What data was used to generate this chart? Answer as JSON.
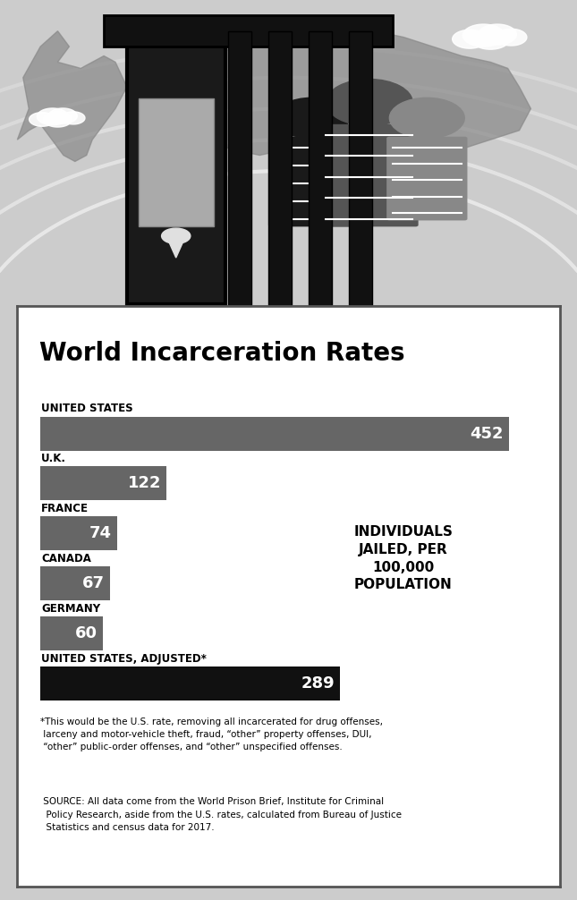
{
  "title": "World Incarceration Rates",
  "categories": [
    "UNITED STATES",
    "U.K.",
    "FRANCE",
    "CANADA",
    "GERMANY",
    "UNITED STATES, ADJUSTED*"
  ],
  "values": [
    452,
    122,
    74,
    67,
    60,
    289
  ],
  "bar_colors": [
    "#666666",
    "#666666",
    "#666666",
    "#666666",
    "#666666",
    "#111111"
  ],
  "value_color": "#ffffff",
  "annotation": "INDIVIDUALS\nJAILED, PER\n100,000\nPOPULATION",
  "footnote1": "*This would be the U.S. rate, removing all incarcerated for drug offenses,\n larceny and motor-vehicle theft, fraud, “other” property offenses, DUI,\n “other” public-order offenses, and “other” unspecified offenses.",
  "footnote2": " SOURCE: All data come from the World Prison Brief, Institute for Criminal\n  Policy Research, aside from the U.S. rates, calculated from Bureau of Justice\n  Statistics and census data for 2017.",
  "bg_color": "#ffffff",
  "border_color": "#555555",
  "title_color": "#000000",
  "label_color": "#000000",
  "fig_bg": "#cccccc"
}
